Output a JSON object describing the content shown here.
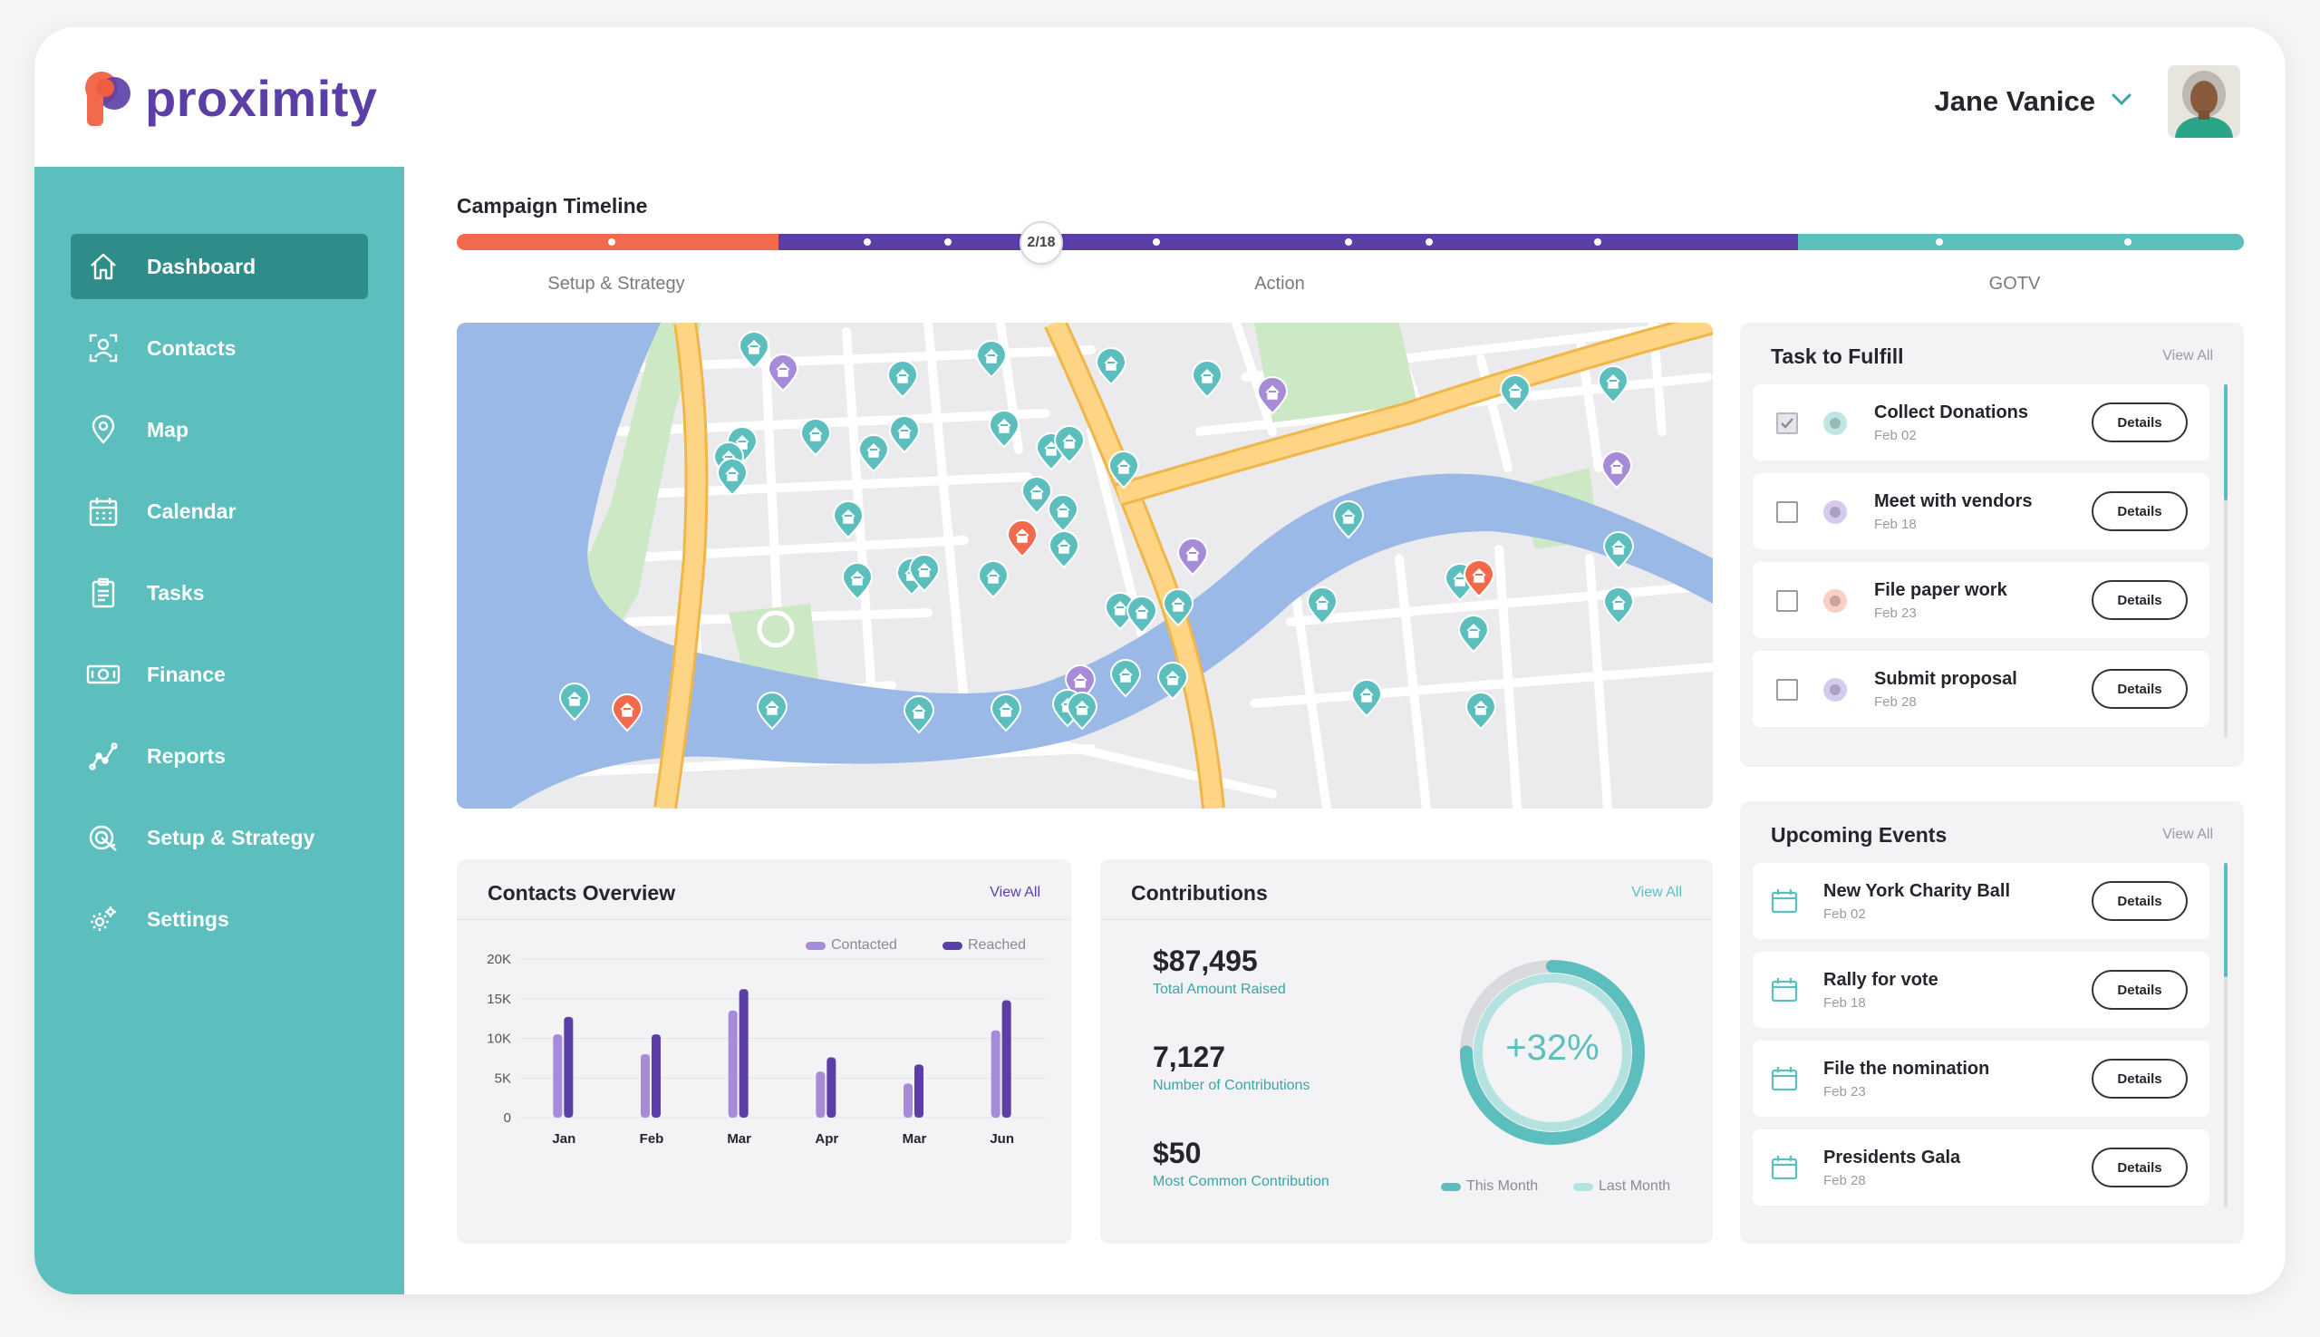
{
  "app": {
    "brand": "proximity"
  },
  "header": {
    "user_name": "Jane Vanice"
  },
  "colors": {
    "teal": "#5cbfbe",
    "teal_dark": "#2e8d88",
    "orange": "#f26a4b",
    "purple": "#5b3ea6",
    "purple_light": "#a68bd9"
  },
  "sidebar": {
    "items": [
      {
        "label": "Dashboard",
        "icon": "home-icon",
        "active": true
      },
      {
        "label": "Contacts",
        "icon": "contacts-icon"
      },
      {
        "label": "Map",
        "icon": "map-pin-icon"
      },
      {
        "label": "Calendar",
        "icon": "calendar-icon"
      },
      {
        "label": "Tasks",
        "icon": "clipboard-icon"
      },
      {
        "label": "Finance",
        "icon": "money-icon"
      },
      {
        "label": "Reports",
        "icon": "reports-icon"
      },
      {
        "label": "Setup & Strategy",
        "icon": "strategy-icon"
      },
      {
        "label": "Settings",
        "icon": "gear-icon"
      }
    ]
  },
  "timeline": {
    "title": "Campaign Timeline",
    "current": "2/18",
    "phases": [
      {
        "label": "Setup & Strategy",
        "color": "#f26a4b"
      },
      {
        "label": "Action",
        "color": "#5b3ea6"
      },
      {
        "label": "GOTV",
        "color": "#5cbfbe"
      }
    ]
  },
  "contacts_overview": {
    "title": "Contacts Overview",
    "view_all": "View All",
    "legend": [
      "Contacted",
      "Reached"
    ]
  },
  "chart_data": {
    "type": "bar",
    "categories": [
      "Jan",
      "Feb",
      "Mar",
      "Apr",
      "Mar",
      "Jun"
    ],
    "series": [
      {
        "name": "Contacted",
        "values": [
          10500,
          8000,
          13500,
          5800,
          4300,
          11000
        ],
        "color": "#a68bd9"
      },
      {
        "name": "Reached",
        "values": [
          12700,
          10500,
          16200,
          7600,
          6700,
          14800
        ],
        "color": "#5b3ea6"
      }
    ],
    "yticks": [
      "0",
      "5K",
      "10K",
      "15K",
      "20K"
    ],
    "ylim": [
      0,
      20000
    ],
    "grid": true,
    "legend_position": "top-right"
  },
  "contributions": {
    "title": "Contributions",
    "view_all": "View All",
    "total_value": "$87,495",
    "total_label": "Total Amount Raised",
    "count_value": "7,127",
    "count_label": "Number of Contributions",
    "common_value": "$50",
    "common_label": "Most Common Contribution",
    "change": "+32%",
    "legend": [
      "This Month",
      "Last Month"
    ]
  },
  "tasks": {
    "title": "Task to Fulfill",
    "view_all": "View All",
    "details_label": "Details",
    "items": [
      {
        "title": "Collect Donations",
        "date": "Feb 02",
        "checked": true,
        "color": "#8fd3d2"
      },
      {
        "title": "Meet with vendors",
        "date": "Feb 18",
        "checked": false,
        "color": "#b9a6e3"
      },
      {
        "title": "File paper work",
        "date": "Feb 23",
        "checked": false,
        "color": "#f7a592"
      },
      {
        "title": "Submit proposal",
        "date": "Feb 28",
        "checked": false,
        "color": "#b9a6e3"
      }
    ]
  },
  "events": {
    "title": "Upcoming Events",
    "view_all": "View All",
    "details_label": "Details",
    "items": [
      {
        "title": "New York Charity Ball",
        "date": "Feb 02"
      },
      {
        "title": "Rally for vote",
        "date": "Feb 18"
      },
      {
        "title": "File the nomination",
        "date": "Feb 23"
      },
      {
        "title": "Presidents Gala",
        "date": "Feb 28"
      }
    ]
  }
}
